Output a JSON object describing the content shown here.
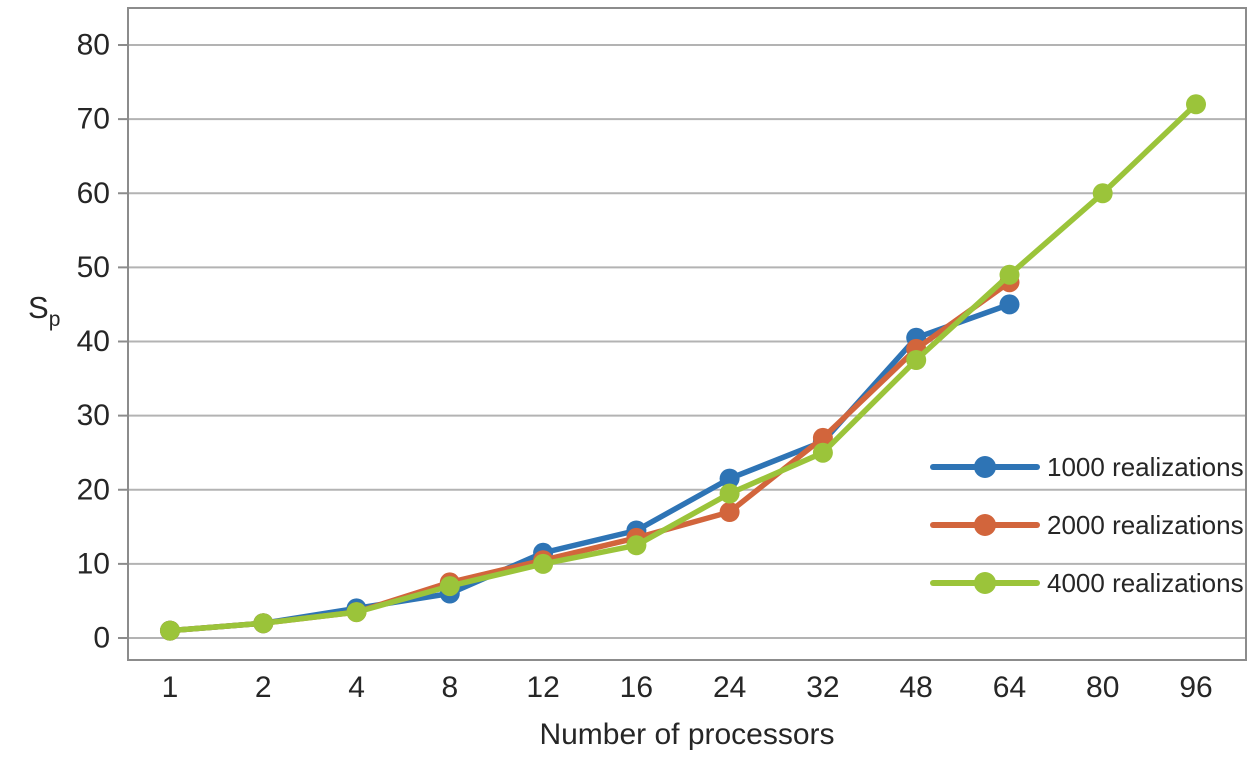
{
  "chart_data": {
    "type": "line",
    "categories": [
      "1",
      "2",
      "4",
      "8",
      "12",
      "16",
      "24",
      "32",
      "48",
      "64",
      "80",
      "96"
    ],
    "series": [
      {
        "name": "1000 realizations",
        "color": "#2e74b5",
        "values": [
          1,
          2,
          4,
          6,
          11.5,
          14.5,
          21.5,
          26.5,
          40.5,
          45,
          null,
          null
        ]
      },
      {
        "name": "2000 realizations",
        "color": "#d2653c",
        "values": [
          1,
          2,
          3.5,
          7.5,
          10.5,
          13.5,
          17,
          27,
          39,
          48,
          null,
          null
        ]
      },
      {
        "name": "4000 realizations",
        "color": "#9bc43a",
        "values": [
          1,
          2,
          3.5,
          7,
          10,
          12.5,
          19.5,
          25,
          37.5,
          49,
          60,
          72
        ]
      }
    ],
    "title": "",
    "xlabel": "Number of processors",
    "ylabel": "Sp",
    "ylabel_main": "S",
    "ylabel_sub": "p",
    "ylim": [
      0,
      80
    ],
    "ytick_step": 10,
    "ytick_labels": [
      "0",
      "10",
      "20",
      "30",
      "40",
      "50",
      "60",
      "70",
      "80"
    ],
    "grid": true,
    "legend_position": "inside-right",
    "legend_entries": [
      "1000 realizations",
      "2000 realizations",
      "4000 realizations"
    ]
  },
  "styles": {
    "grid_color": "#b3b3b3",
    "border_color": "#8c8c8c",
    "text_color": "#262626",
    "background": "#ffffff"
  }
}
